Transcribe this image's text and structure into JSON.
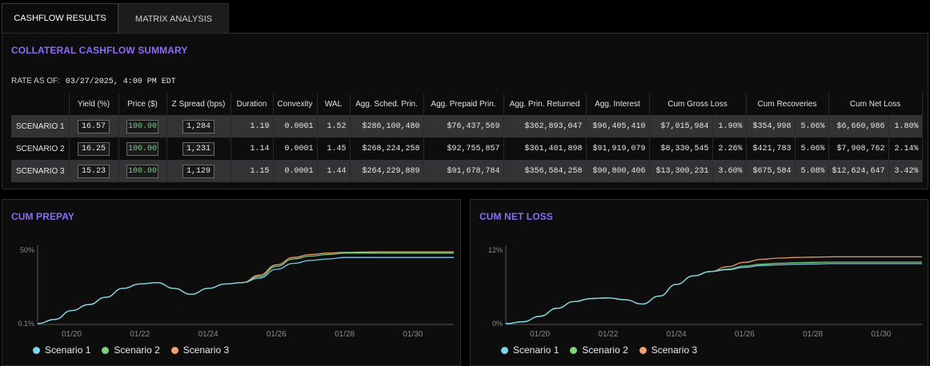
{
  "tabs": [
    {
      "label": "CASHFLOW RESULTS"
    },
    {
      "label": "MATRIX ANALYSIS"
    }
  ],
  "summary": {
    "title": "COLLATERAL CASHFLOW SUMMARY",
    "rate_label": "RATE AS OF:",
    "rate_value": "03/27/2025, 4:00 PM EDT",
    "columns": [
      "",
      "Yield (%)",
      "Price ($)",
      "Z Spread (bps)",
      "Duration",
      "Convexity",
      "WAL",
      "Agg. Sched. Prin.",
      "Agg. Prepaid Prin.",
      "Agg. Prin. Returned",
      "Agg. Interest",
      "Cum Gross Loss",
      "Cum Recoveries",
      "Cum Net Loss"
    ],
    "rows": [
      {
        "name": "SCENARIO 1",
        "yield": "16.57",
        "price": "100.00",
        "zspread": "1,284",
        "duration": "1.19",
        "convexity": "0.0001",
        "wal": "1.52",
        "sched": "$286,100,480",
        "prepaid": "$76,437,569",
        "returned": "$362,893,047",
        "interest": "$96,405,410",
        "gross_loss": "$7,015,984",
        "gross_loss_pct": "1.90%",
        "recoveries": "$354,998",
        "recoveries_pct": "5.06%",
        "net_loss": "$6,660,986",
        "net_loss_pct": "1.80%"
      },
      {
        "name": "SCENARIO 2",
        "yield": "16.25",
        "price": "100.00",
        "zspread": "1,231",
        "duration": "1.14",
        "convexity": "0.0001",
        "wal": "1.45",
        "sched": "$268,224,258",
        "prepaid": "$92,755,857",
        "returned": "$361,401,898",
        "interest": "$91,919,079",
        "gross_loss": "$8,330,545",
        "gross_loss_pct": "2.26%",
        "recoveries": "$421,783",
        "recoveries_pct": "5.06%",
        "net_loss": "$7,908,762",
        "net_loss_pct": "2.14%"
      },
      {
        "name": "SCENARIO 3",
        "yield": "15.23",
        "price": "100.00",
        "zspread": "1,129",
        "duration": "1.15",
        "convexity": "0.0001",
        "wal": "1.44",
        "sched": "$264,229,889",
        "prepaid": "$91,678,784",
        "returned": "$356,584,258",
        "interest": "$90,800,406",
        "gross_loss": "$13,300,231",
        "gross_loss_pct": "3.60%",
        "recoveries": "$675,584",
        "recoveries_pct": "5.08%",
        "net_loss": "$12,624,647",
        "net_loss_pct": "3.42%"
      }
    ]
  },
  "colors": {
    "accent": "#8b6cf7",
    "scenario1": "#7dd3f0",
    "scenario2": "#7fd17a",
    "scenario3": "#f0a070"
  },
  "chart_data": [
    {
      "type": "line",
      "title": "CUM PREPAY",
      "ylim": [
        0.1,
        50
      ],
      "ytick_labels": [
        "0.1%",
        "50%"
      ],
      "xtick_labels": [
        "01/20",
        "01/22",
        "01/24",
        "01/26",
        "01/28",
        "01/30"
      ],
      "x": [
        2019.0,
        2019.5,
        2020.0,
        2020.5,
        2021.0,
        2021.5,
        2022.0,
        2022.5,
        2023.0,
        2023.5,
        2024.0,
        2024.5,
        2025.0,
        2025.5,
        2026.0,
        2026.5,
        2027.0,
        2027.5,
        2028.0,
        2028.5,
        2029.0,
        2029.5,
        2030.0,
        2030.5,
        2031.2
      ],
      "series": [
        {
          "name": "Scenario 1",
          "values": [
            0.1,
            3,
            9,
            13,
            18,
            24,
            27,
            28,
            24,
            20,
            24,
            27,
            28,
            31,
            37,
            41,
            43,
            44,
            45,
            45,
            45,
            45,
            45,
            45,
            45
          ]
        },
        {
          "name": "Scenario 2",
          "values": [
            0.1,
            3,
            9,
            13,
            18,
            24,
            27,
            28,
            24,
            20,
            24,
            27,
            28,
            32,
            39,
            44,
            46,
            47,
            48,
            48,
            48,
            48,
            48,
            48,
            48
          ]
        },
        {
          "name": "Scenario 3",
          "values": [
            0.1,
            3,
            9,
            13,
            18,
            24,
            27,
            28,
            24,
            20,
            24,
            27,
            28,
            33,
            40,
            45,
            47,
            48,
            48.5,
            48.7,
            48.8,
            48.8,
            48.8,
            48.8,
            48.8
          ]
        }
      ],
      "legend": [
        "Scenario 1",
        "Scenario 2",
        "Scenario 3"
      ]
    },
    {
      "type": "line",
      "title": "CUM NET LOSS",
      "ylim": [
        0,
        12
      ],
      "ytick_labels": [
        "0%",
        "12%"
      ],
      "xtick_labels": [
        "01/20",
        "01/22",
        "01/24",
        "01/26",
        "01/28",
        "01/30"
      ],
      "x": [
        2019.0,
        2019.5,
        2020.0,
        2020.5,
        2021.0,
        2021.5,
        2022.0,
        2022.5,
        2023.0,
        2023.5,
        2024.0,
        2024.5,
        2025.0,
        2025.5,
        2026.0,
        2026.5,
        2027.0,
        2027.5,
        2028.0,
        2028.5,
        2029.0,
        2029.5,
        2030.0,
        2030.5,
        2031.2
      ],
      "series": [
        {
          "name": "Scenario 1",
          "values": [
            0,
            0.3,
            1.2,
            2.5,
            3.6,
            4.1,
            4.2,
            3.9,
            3.2,
            4.5,
            6.4,
            7.8,
            8.5,
            8.8,
            9.2,
            9.5,
            9.6,
            9.7,
            9.75,
            9.8,
            9.8,
            9.8,
            9.8,
            9.8,
            9.8
          ]
        },
        {
          "name": "Scenario 2",
          "values": [
            0,
            0.3,
            1.2,
            2.5,
            3.6,
            4.1,
            4.2,
            3.9,
            3.2,
            4.5,
            6.4,
            7.8,
            8.5,
            8.9,
            9.4,
            9.7,
            9.85,
            9.95,
            10.0,
            10.05,
            10.05,
            10.05,
            10.05,
            10.05,
            10.05
          ]
        },
        {
          "name": "Scenario 3",
          "values": [
            0,
            0.3,
            1.2,
            2.5,
            3.6,
            4.1,
            4.2,
            3.9,
            3.2,
            4.5,
            6.4,
            7.8,
            8.5,
            9.3,
            10.0,
            10.5,
            10.7,
            10.8,
            10.85,
            10.9,
            10.9,
            10.9,
            10.9,
            10.9,
            10.9
          ]
        }
      ],
      "legend": [
        "Scenario 1",
        "Scenario 2",
        "Scenario 3"
      ]
    }
  ]
}
